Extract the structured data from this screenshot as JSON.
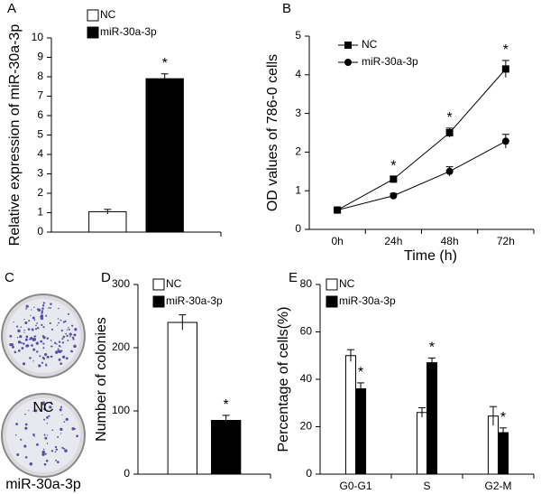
{
  "chart_data": [
    {
      "type": "bar",
      "panel": "A",
      "ylabel": "Relative expression of miR-30a-3p",
      "categories": [
        null
      ],
      "series": [
        {
          "name": "NC",
          "color": "#ffffff",
          "values": [
            1.05
          ],
          "errors": [
            0.12
          ],
          "annotations": [
            null
          ]
        },
        {
          "name": "miR-30a-3p",
          "color": "#000000",
          "values": [
            7.9
          ],
          "errors": [
            0.25
          ],
          "annotations": [
            "*"
          ]
        }
      ],
      "ylim": [
        0,
        10
      ],
      "yticks": [
        0,
        1,
        2,
        3,
        4,
        5,
        6,
        7,
        8,
        9,
        10
      ],
      "legend": "upper left",
      "grid": false
    },
    {
      "type": "line",
      "panel": "B",
      "xlabel": "Time (h)",
      "ylabel": "OD values of 786-0 cells",
      "categories": [
        "0h",
        "24h",
        "48h",
        "72h"
      ],
      "series": [
        {
          "name": "NC",
          "color": "#000000",
          "marker": "square",
          "values": [
            0.5,
            1.3,
            2.5,
            4.15
          ],
          "errors": [
            0.03,
            0.07,
            0.12,
            0.22
          ],
          "annotations": [
            null,
            "*",
            "*",
            "*"
          ]
        },
        {
          "name": "miR-30a-3p",
          "color": "#000000",
          "marker": "circle",
          "values": [
            0.5,
            0.87,
            1.5,
            2.28
          ],
          "errors": [
            0.03,
            0.06,
            0.12,
            0.18
          ],
          "annotations": [
            null,
            null,
            null,
            null
          ]
        }
      ],
      "ylim": [
        0,
        5
      ],
      "yticks": [
        0,
        1,
        2,
        3,
        4,
        5
      ],
      "legend": "upper left",
      "grid": false
    },
    {
      "type": "image",
      "panel": "C",
      "labels": [
        "NC",
        "miR-30a-3p"
      ]
    },
    {
      "type": "bar",
      "panel": "D",
      "ylabel": "Number of colonies",
      "categories": [
        null
      ],
      "series": [
        {
          "name": "NC",
          "color": "#ffffff",
          "values": [
            240
          ],
          "errors": [
            12
          ],
          "annotations": [
            null
          ]
        },
        {
          "name": "miR-30a-3p",
          "color": "#000000",
          "values": [
            85
          ],
          "errors": [
            8
          ],
          "annotations": [
            "*"
          ]
        }
      ],
      "ylim": [
        0,
        300
      ],
      "yticks": [
        0,
        100,
        200,
        300
      ],
      "legend": "upper left",
      "grid": false
    },
    {
      "type": "bar",
      "panel": "E",
      "ylabel": "Percentage of cells(%)",
      "categories": [
        "G0-G1",
        "S",
        "G2-M"
      ],
      "series": [
        {
          "name": "NC",
          "color": "#ffffff",
          "values": [
            50,
            26,
            24.5
          ],
          "errors": [
            2.5,
            2,
            4
          ],
          "annotations": [
            null,
            null,
            null
          ]
        },
        {
          "name": "miR-30a-3p",
          "color": "#000000",
          "values": [
            36,
            47,
            17.5
          ],
          "errors": [
            2.5,
            2,
            2
          ],
          "annotations": [
            "*",
            "*",
            "*"
          ]
        }
      ],
      "ylim": [
        0,
        80
      ],
      "yticks": [
        0,
        20,
        40,
        60,
        80
      ],
      "legend": "upper left",
      "grid": false
    }
  ]
}
